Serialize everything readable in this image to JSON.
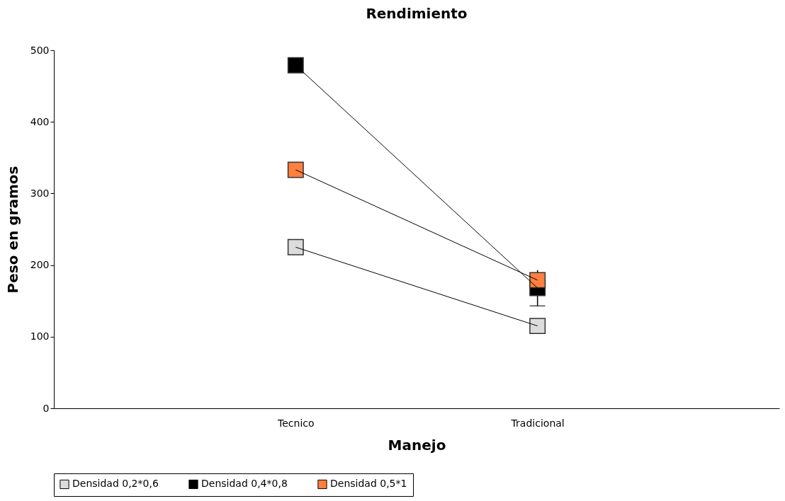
{
  "chart_data": {
    "type": "line",
    "title": "Rendimiento",
    "xlabel": "Manejo",
    "ylabel": "Peso en gramos",
    "categories": [
      "Tecnico",
      "Tradicional"
    ],
    "series": [
      {
        "name": "Densidad 0,2*0,6",
        "color": "#dcdcdc",
        "values": [
          225,
          115
        ]
      },
      {
        "name": "Densidad 0,4*0,8",
        "color": "#000000",
        "values": [
          479,
          168
        ],
        "errors": [
          null,
          25
        ]
      },
      {
        "name": "Densidad 0,5*1",
        "color": "#ff7f3f",
        "values": [
          333,
          179
        ]
      }
    ],
    "ylim": [
      0,
      500
    ],
    "yticks": [
      0,
      100,
      200,
      300,
      400,
      500
    ],
    "grid": false,
    "legend": "bottom",
    "marker": "square",
    "line_style": "solid"
  }
}
